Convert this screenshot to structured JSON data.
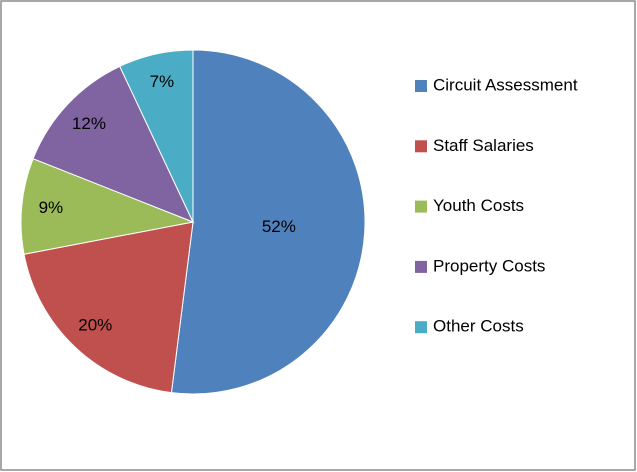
{
  "chart_data": {
    "type": "pie",
    "categories": [
      "Circuit Assessment",
      "Staff Salaries",
      "Youth Costs",
      "Property Costs",
      "Other Costs"
    ],
    "values": [
      52,
      20,
      9,
      12,
      7
    ],
    "value_labels": [
      "52%",
      "20%",
      "9%",
      "12%",
      "7%"
    ],
    "colors": [
      "#4f81bd",
      "#c0504d",
      "#9bbb59",
      "#8064a2",
      "#4bacc6"
    ],
    "legend": "right"
  }
}
